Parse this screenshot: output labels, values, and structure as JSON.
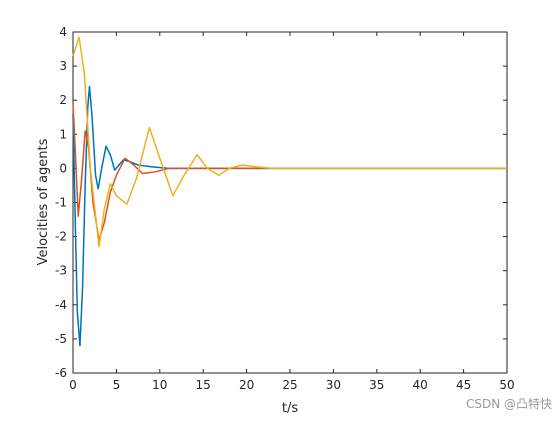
{
  "chart_data": {
    "type": "line",
    "xlabel": "t/s",
    "ylabel": "Velocities of agents",
    "xlim": [
      0,
      50
    ],
    "ylim": [
      -6,
      4
    ],
    "xticks": [
      0,
      5,
      10,
      15,
      20,
      25,
      30,
      35,
      40,
      45,
      50
    ],
    "yticks": [
      -6,
      -5,
      -4,
      -3,
      -2,
      -1,
      0,
      1,
      2,
      3,
      4
    ],
    "series": [
      {
        "color": "#0072bd",
        "x": [
          0,
          0.3,
          0.5,
          0.8,
          1.1,
          1.4,
          1.7,
          1.9,
          2.2,
          2.6,
          2.9,
          3.3,
          3.8,
          4.3,
          4.8,
          5.3,
          5.8,
          6.5,
          7.5,
          9,
          11,
          15,
          20,
          30,
          40,
          50
        ],
        "values": [
          1.6,
          -2,
          -4.2,
          -5.2,
          -3.5,
          -0.5,
          1.8,
          2.4,
          1.5,
          -0.2,
          -0.6,
          0,
          0.65,
          0.4,
          -0.05,
          0.1,
          0.25,
          0.2,
          0.1,
          0.05,
          0,
          0,
          0,
          0,
          0,
          0
        ]
      },
      {
        "color": "#d95319",
        "x": [
          0,
          0.3,
          0.6,
          1,
          1.4,
          1.8,
          2.3,
          3,
          3.6,
          4.3,
          5,
          6,
          7,
          8,
          9.5,
          11,
          13,
          20,
          50
        ],
        "values": [
          1.9,
          0.3,
          -1.4,
          -0.3,
          1.1,
          0.6,
          -1.0,
          -2.1,
          -1.6,
          -0.7,
          -0.2,
          0.3,
          0.1,
          -0.15,
          -0.1,
          0,
          0,
          0,
          0
        ]
      },
      {
        "color": "#edb120",
        "x": [
          0,
          0.7,
          1.3,
          2,
          3,
          3.6,
          4.3,
          5,
          6.2,
          7.3,
          8.8,
          10,
          11.5,
          12.8,
          14.3,
          15.5,
          16.8,
          18,
          19.5,
          21,
          23,
          50
        ],
        "values": [
          3.3,
          3.85,
          2.8,
          0,
          -2.3,
          -1.2,
          -0.45,
          -0.8,
          -1.05,
          -0.3,
          1.2,
          0.3,
          -0.8,
          -0.2,
          0.4,
          0,
          -0.2,
          0,
          0.1,
          0.05,
          0,
          0
        ]
      }
    ]
  },
  "watermark": "CSDN @凸特快"
}
